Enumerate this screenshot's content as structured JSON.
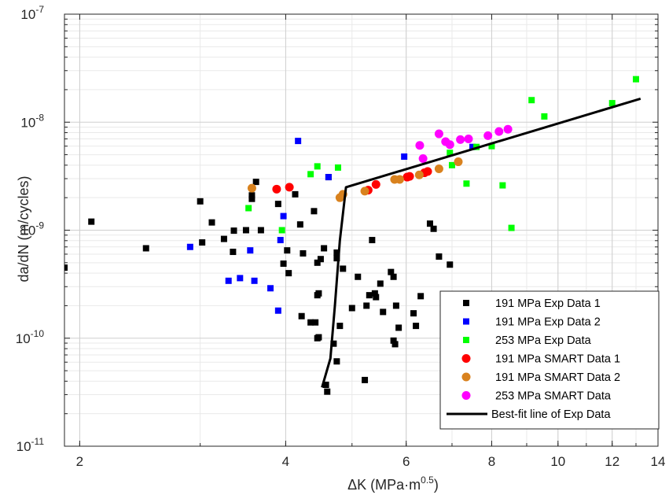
{
  "chart_data": {
    "type": "scatter",
    "title": "",
    "xlabel": "ΔK (MPa·m",
    "xlabel_sup": "0.5",
    "xlabel_end": ")",
    "ylabel": "da/dN (m/cycles)",
    "xscale": "log",
    "yscale": "log",
    "xlim": [
      1.9,
      14
    ],
    "ylim": [
      1e-11,
      1e-07
    ],
    "grid": true,
    "legend_position": "bottom-right",
    "x_ticks": [
      2,
      4,
      6,
      8,
      10,
      12,
      14
    ],
    "x_tick_labels": [
      "2",
      "4",
      "6",
      "8",
      "10",
      "12",
      "14"
    ],
    "y_ticks": [
      {
        "value": 1e-11,
        "base": "10",
        "exp": "-11"
      },
      {
        "value": 1e-10,
        "base": "10",
        "exp": "-10"
      },
      {
        "value": 1e-09,
        "base": "10",
        "exp": "-9"
      },
      {
        "value": 1e-08,
        "base": "10",
        "exp": "-8"
      },
      {
        "value": 1e-07,
        "base": "10",
        "exp": "-7"
      }
    ],
    "series": [
      {
        "name": "191 MPa Exp Data 1",
        "marker": "square",
        "color": "#000000",
        "points": [
          [
            1.9,
            4.5e-10
          ],
          [
            2.08,
            1.2e-09
          ],
          [
            2.5,
            6.8e-10
          ],
          [
            3.0,
            1.85e-09
          ],
          [
            3.02,
            7.7e-10
          ],
          [
            3.12,
            1.18e-09
          ],
          [
            3.25,
            8.3e-10
          ],
          [
            3.35,
            6.3e-10
          ],
          [
            3.36,
            9.9e-10
          ],
          [
            3.5,
            1e-09
          ],
          [
            3.57,
            2.1e-09
          ],
          [
            3.57,
            1.95e-09
          ],
          [
            3.62,
            2.8e-09
          ],
          [
            3.68,
            1e-09
          ],
          [
            3.9,
            1.75e-09
          ],
          [
            3.97,
            4.9e-10
          ],
          [
            4.02,
            6.5e-10
          ],
          [
            4.04,
            4e-10
          ],
          [
            4.13,
            2.15e-09
          ],
          [
            4.2,
            1.13e-09
          ],
          [
            4.24,
            6.1e-10
          ],
          [
            4.22,
            1.6e-10
          ],
          [
            4.35,
            1.4e-10
          ],
          [
            4.4,
            1.5e-09
          ],
          [
            4.42,
            1.4e-10
          ],
          [
            4.45,
            2.5e-10
          ],
          [
            4.47,
            2.6e-10
          ],
          [
            4.45,
            1e-10
          ],
          [
            4.47,
            1.02e-10
          ],
          [
            4.45,
            5e-10
          ],
          [
            4.5,
            5.4e-10
          ],
          [
            4.55,
            6.8e-10
          ],
          [
            4.58,
            3.7e-11
          ],
          [
            4.6,
            3.2e-11
          ],
          [
            4.62,
            3.1e-09
          ],
          [
            4.7,
            8.9e-11
          ],
          [
            4.75,
            6.1e-11
          ],
          [
            4.75,
            6.2e-10
          ],
          [
            4.75,
            5.5e-10
          ],
          [
            4.8,
            1.3e-10
          ],
          [
            4.85,
            4.4e-10
          ],
          [
            5.0,
            1.9e-10
          ],
          [
            5.1,
            3.7e-10
          ],
          [
            5.22,
            4.1e-11
          ],
          [
            5.25,
            2e-10
          ],
          [
            5.3,
            2.5e-10
          ],
          [
            5.35,
            8.1e-10
          ],
          [
            5.4,
            2.6e-10
          ],
          [
            5.42,
            2.4e-10
          ],
          [
            5.5,
            3.2e-10
          ],
          [
            5.55,
            1.75e-10
          ],
          [
            5.7,
            4.1e-10
          ],
          [
            5.75,
            3.7e-10
          ],
          [
            5.75,
            9.5e-11
          ],
          [
            5.78,
            8.8e-11
          ],
          [
            5.8,
            2e-10
          ],
          [
            5.85,
            1.25e-10
          ],
          [
            6.15,
            1.7e-10
          ],
          [
            6.2,
            1.3e-10
          ],
          [
            6.3,
            2.45e-10
          ],
          [
            6.5,
            1.15e-09
          ],
          [
            6.58,
            1.03e-09
          ],
          [
            6.7,
            5.7e-10
          ],
          [
            6.95,
            4.8e-10
          ]
        ]
      },
      {
        "name": "191 MPa Exp Data 2",
        "marker": "square",
        "color": "#0000ff",
        "points": [
          [
            2.9,
            7e-10
          ],
          [
            3.3,
            3.4e-10
          ],
          [
            3.43,
            3.6e-10
          ],
          [
            3.55,
            6.5e-10
          ],
          [
            3.6,
            3.4e-10
          ],
          [
            3.8,
            2.9e-10
          ],
          [
            3.9,
            1.8e-10
          ],
          [
            3.93,
            8.1e-10
          ],
          [
            3.97,
            1.35e-09
          ],
          [
            4.17,
            6.7e-09
          ],
          [
            4.62,
            3.1e-09
          ],
          [
            5.96,
            4.8e-09
          ],
          [
            7.5,
            5.9e-09
          ]
        ]
      },
      {
        "name": "253 MPa Exp Data",
        "marker": "square",
        "color": "#00ff00",
        "points": [
          [
            3.53,
            1.6e-09
          ],
          [
            3.95,
            1e-09
          ],
          [
            4.35,
            3.3e-09
          ],
          [
            4.45,
            3.9e-09
          ],
          [
            4.77,
            3.8e-09
          ],
          [
            6.95,
            5.2e-09
          ],
          [
            7.0,
            4e-09
          ],
          [
            7.35,
            2.7e-09
          ],
          [
            7.6,
            5.9e-09
          ],
          [
            8.0,
            6e-09
          ],
          [
            8.3,
            2.6e-09
          ],
          [
            8.55,
            1.05e-09
          ],
          [
            9.15,
            1.6e-08
          ],
          [
            9.55,
            1.13e-08
          ],
          [
            12.0,
            1.5e-08
          ],
          [
            13.0,
            2.5e-08
          ]
        ]
      },
      {
        "name": "191 MPa SMART Data 1",
        "marker": "circle",
        "color": "#ff0000",
        "points": [
          [
            3.88,
            2.4e-09
          ],
          [
            4.05,
            2.5e-09
          ],
          [
            5.28,
            2.35e-09
          ],
          [
            5.42,
            2.65e-09
          ],
          [
            6.02,
            3.1e-09
          ],
          [
            6.07,
            3.15e-09
          ],
          [
            6.38,
            3.4e-09
          ],
          [
            6.45,
            3.5e-09
          ]
        ]
      },
      {
        "name": "191 MPa SMART Data 2",
        "marker": "circle",
        "color": "#d9821e",
        "points": [
          [
            3.57,
            2.45e-09
          ],
          [
            4.8,
            2e-09
          ],
          [
            4.85,
            2.15e-09
          ],
          [
            5.22,
            2.3e-09
          ],
          [
            5.77,
            2.95e-09
          ],
          [
            5.87,
            2.95e-09
          ],
          [
            6.27,
            3.25e-09
          ],
          [
            6.7,
            3.7e-09
          ],
          [
            7.15,
            4.3e-09
          ]
        ]
      },
      {
        "name": "253 MPa SMART Data",
        "marker": "circle",
        "color": "#ff00ff",
        "points": [
          [
            6.28,
            6.1e-09
          ],
          [
            6.35,
            4.6e-09
          ],
          [
            6.7,
            7.8e-09
          ],
          [
            6.85,
            6.6e-09
          ],
          [
            6.95,
            6.2e-09
          ],
          [
            7.2,
            6.9e-09
          ],
          [
            7.4,
            7e-09
          ],
          [
            7.9,
            7.5e-09
          ],
          [
            8.2,
            8.2e-09
          ],
          [
            8.45,
            8.6e-09
          ]
        ]
      },
      {
        "name": "Best-fit line of Exp Data",
        "marker": "line",
        "color": "#000000",
        "points": [
          [
            4.52,
            3.5e-11
          ],
          [
            4.65,
            6.5e-11
          ],
          [
            4.72,
            2e-10
          ],
          [
            4.8,
            8e-10
          ],
          [
            4.9,
            2.5e-09
          ],
          [
            13.2,
            1.65e-08
          ]
        ]
      }
    ]
  }
}
